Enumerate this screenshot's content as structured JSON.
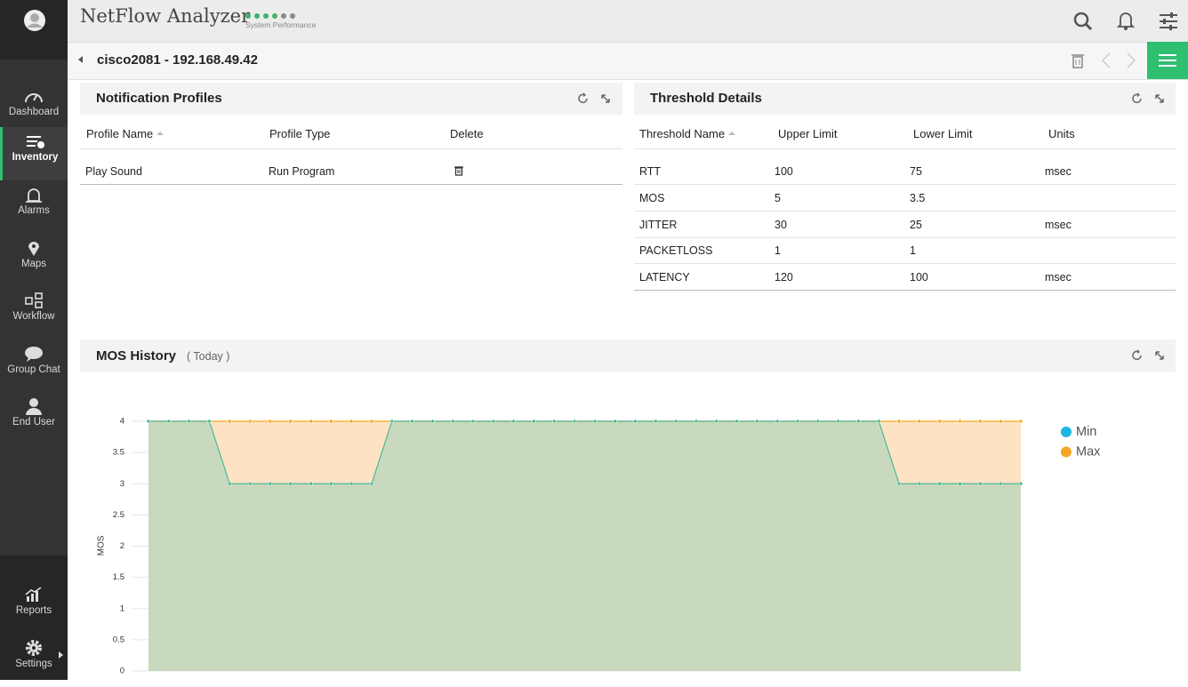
{
  "app": {
    "title": "NetFlow Analyzer",
    "status_label": "System Performance"
  },
  "sidebar": {
    "items": [
      "Dashboard",
      "Inventory",
      "Alarms",
      "Maps",
      "Workflow",
      "Group Chat",
      "End User"
    ],
    "bottom_items": [
      "Reports",
      "Settings"
    ]
  },
  "device": "cisco2081 - 192.168.49.42",
  "notification_profiles": {
    "title": "Notification Profiles",
    "columns": [
      "Profile Name",
      "Profile Type",
      "Delete"
    ],
    "rows": [
      [
        "Play Sound",
        "Run Program"
      ]
    ]
  },
  "threshold_details": {
    "title": "Threshold Details",
    "columns": [
      "Threshold Name",
      "Upper Limit",
      "Lower Limit",
      "Units"
    ],
    "rows": [
      [
        "RTT",
        100,
        75,
        "msec"
      ],
      [
        "MOS",
        5,
        3.5,
        null
      ],
      [
        "JITTER",
        30,
        25,
        "msec"
      ],
      [
        "PACKETLOSS",
        1,
        1,
        null
      ],
      [
        "LATENCY",
        120,
        100,
        "msec"
      ]
    ]
  },
  "chart_data": {
    "type": "area",
    "title": "MOS History",
    "subtitle": "( Today )",
    "y_label": "MOS",
    "ylim": [
      0,
      4
    ],
    "yticks": [
      0,
      0.5,
      1,
      1.5,
      2,
      2.5,
      3,
      3.5,
      4
    ],
    "grid": true,
    "series": [
      {
        "name": "Min",
        "color": "#1db4e2",
        "line_color": "#4db89a",
        "fill": "#c9d9bd",
        "values": [
          4,
          4,
          4,
          4,
          3,
          3,
          3,
          3,
          3,
          3,
          3,
          3,
          4,
          4,
          4,
          4,
          4,
          4,
          4,
          4,
          4,
          4,
          4,
          4,
          4,
          4,
          4,
          4,
          4,
          4,
          4,
          4,
          4,
          4,
          4,
          4,
          4,
          3,
          3,
          3,
          3,
          3,
          3,
          3
        ]
      },
      {
        "name": "Max",
        "color": "#f5a623",
        "line_color": "#f5a623",
        "fill": "#fde3c3",
        "values": [
          4,
          4,
          4,
          4,
          4,
          4,
          4,
          4,
          4,
          4,
          4,
          4,
          4,
          4,
          4,
          4,
          4,
          4,
          4,
          4,
          4,
          4,
          4,
          4,
          4,
          4,
          4,
          4,
          4,
          4,
          4,
          4,
          4,
          4,
          4,
          4,
          4,
          4,
          4,
          4,
          4,
          4,
          4,
          4
        ]
      }
    ]
  }
}
